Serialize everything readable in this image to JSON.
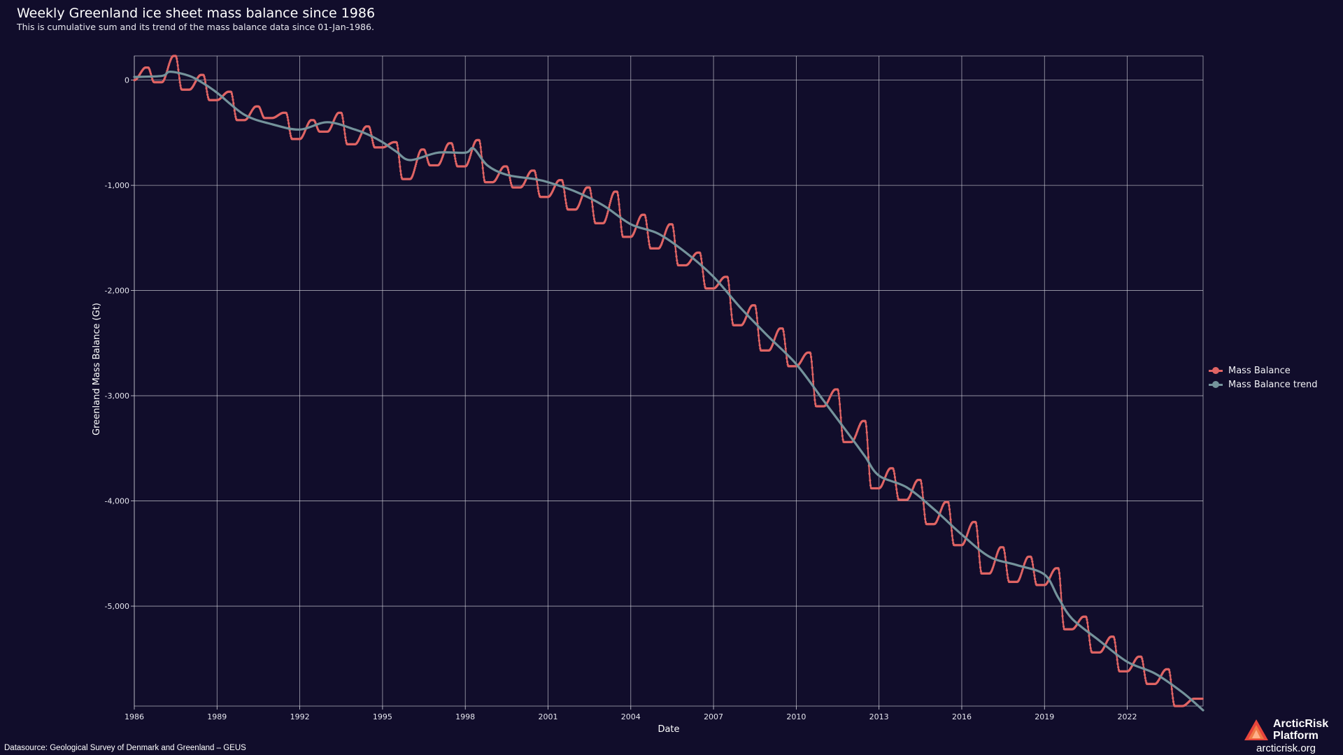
{
  "header": {
    "title": "Weekly Greenland ice sheet mass balance since 1986",
    "subtitle": "This is cumulative sum and its trend of the mass balance data since 01-Jan-1986."
  },
  "footer": {
    "source": "Datasource: Geological Survey of Denmark and Greenland – GEUS",
    "brand_line1": "ArcticRisk",
    "brand_line2": "Platform",
    "brand_url": "arcticrisk.org"
  },
  "colors": {
    "background": "#110d2b",
    "grid": "#d8d8e0",
    "mass_balance": "#e06464",
    "trend": "#74939b",
    "text": "#ffffff"
  },
  "chart_data": {
    "type": "line",
    "xlabel": "Date",
    "ylabel": "Greenland Mass Balance (Gt)",
    "xlim": [
      1986.0,
      2024.75
    ],
    "ylim": [
      -5950,
      230
    ],
    "x_ticks": [
      1986,
      1989,
      1992,
      1995,
      1998,
      2001,
      2004,
      2007,
      2010,
      2013,
      2016,
      2019,
      2022
    ],
    "y_ticks": [
      0,
      -1000,
      -2000,
      -3000,
      -4000,
      -5000
    ],
    "y_tick_labels": [
      "0",
      "-1,000",
      "-2,000",
      "-3,000",
      "-4,000",
      "-5,000"
    ],
    "grid": true,
    "legend_position": "right",
    "series": [
      {
        "name": "Mass Balance",
        "style": "line-with-markers",
        "color": "#e06464",
        "annual_points": [
          {
            "year": 1986,
            "start": 0,
            "peak": 120,
            "low": -20
          },
          {
            "year": 1987,
            "start": -20,
            "peak": 230,
            "low": -90
          },
          {
            "year": 1988,
            "start": -90,
            "peak": 50,
            "low": -190
          },
          {
            "year": 1989,
            "start": -190,
            "peak": -110,
            "low": -380
          },
          {
            "year": 1990,
            "start": -380,
            "peak": -250,
            "low": -360
          },
          {
            "year": 1991,
            "start": -360,
            "peak": -310,
            "low": -560
          },
          {
            "year": 1992,
            "start": -560,
            "peak": -380,
            "low": -490
          },
          {
            "year": 1993,
            "start": -490,
            "peak": -310,
            "low": -610
          },
          {
            "year": 1994,
            "start": -610,
            "peak": -440,
            "low": -640
          },
          {
            "year": 1995,
            "start": -640,
            "peak": -590,
            "low": -940
          },
          {
            "year": 1996,
            "start": -940,
            "peak": -660,
            "low": -810
          },
          {
            "year": 1997,
            "start": -810,
            "peak": -600,
            "low": -820
          },
          {
            "year": 1998,
            "start": -820,
            "peak": -570,
            "low": -970
          },
          {
            "year": 1999,
            "start": -970,
            "peak": -820,
            "low": -1020
          },
          {
            "year": 2000,
            "start": -1020,
            "peak": -860,
            "low": -1110
          },
          {
            "year": 2001,
            "start": -1110,
            "peak": -950,
            "low": -1230
          },
          {
            "year": 2002,
            "start": -1230,
            "peak": -1020,
            "low": -1360
          },
          {
            "year": 2003,
            "start": -1360,
            "peak": -1060,
            "low": -1490
          },
          {
            "year": 2004,
            "start": -1490,
            "peak": -1280,
            "low": -1600
          },
          {
            "year": 2005,
            "start": -1600,
            "peak": -1370,
            "low": -1760
          },
          {
            "year": 2006,
            "start": -1760,
            "peak": -1640,
            "low": -1980
          },
          {
            "year": 2007,
            "start": -1980,
            "peak": -1870,
            "low": -2330
          },
          {
            "year": 2008,
            "start": -2330,
            "peak": -2140,
            "low": -2570
          },
          {
            "year": 2009,
            "start": -2570,
            "peak": -2360,
            "low": -2720
          },
          {
            "year": 2010,
            "start": -2720,
            "peak": -2590,
            "low": -3100
          },
          {
            "year": 2011,
            "start": -3100,
            "peak": -2940,
            "low": -3440
          },
          {
            "year": 2012,
            "start": -3440,
            "peak": -3240,
            "low": -3880
          },
          {
            "year": 2013,
            "start": -3880,
            "peak": -3690,
            "low": -3990
          },
          {
            "year": 2014,
            "start": -3990,
            "peak": -3800,
            "low": -4220
          },
          {
            "year": 2015,
            "start": -4220,
            "peak": -4010,
            "low": -4420
          },
          {
            "year": 2016,
            "start": -4420,
            "peak": -4200,
            "low": -4690
          },
          {
            "year": 2017,
            "start": -4690,
            "peak": -4440,
            "low": -4770
          },
          {
            "year": 2018,
            "start": -4770,
            "peak": -4530,
            "low": -4800
          },
          {
            "year": 2019,
            "start": -4800,
            "peak": -4640,
            "low": -5220
          },
          {
            "year": 2020,
            "start": -5220,
            "peak": -5100,
            "low": -5440
          },
          {
            "year": 2021,
            "start": -5440,
            "peak": -5290,
            "low": -5620
          },
          {
            "year": 2022,
            "start": -5620,
            "peak": -5480,
            "low": -5740
          },
          {
            "year": 2023,
            "start": -5740,
            "peak": -5600,
            "low": -5950
          },
          {
            "year": 2024,
            "start": -5950,
            "peak": -5880,
            "low": -5880
          }
        ]
      },
      {
        "name": "Mass Balance trend",
        "style": "line-with-markers",
        "color": "#74939b",
        "x": [
          1986.0,
          1987.0,
          1987.3,
          1988.0,
          1988.5,
          1989.0,
          1990.0,
          1991.0,
          1992.0,
          1993.0,
          1994.0,
          1994.5,
          1995.0,
          1995.5,
          1996.0,
          1997.0,
          1998.0,
          1998.3,
          1998.8,
          1999.5,
          2000.5,
          2001.0,
          2002.0,
          2003.0,
          2004.0,
          2005.0,
          2006.0,
          2007.0,
          2008.0,
          2009.0,
          2010.0,
          2011.0,
          2012.0,
          2012.5,
          2013.0,
          2014.0,
          2015.0,
          2016.0,
          2017.0,
          2018.0,
          2019.0,
          2019.5,
          2020.0,
          2021.0,
          2022.0,
          2023.0,
          2024.0,
          2024.75
        ],
        "y": [
          30,
          40,
          80,
          40,
          -30,
          -120,
          -330,
          -420,
          -470,
          -400,
          -470,
          -520,
          -590,
          -680,
          -760,
          -690,
          -690,
          -650,
          -810,
          -900,
          -940,
          -970,
          -1060,
          -1190,
          -1370,
          -1460,
          -1640,
          -1870,
          -2170,
          -2440,
          -2700,
          -3050,
          -3400,
          -3580,
          -3760,
          -3870,
          -4080,
          -4320,
          -4530,
          -4610,
          -4700,
          -4920,
          -5120,
          -5330,
          -5530,
          -5640,
          -5820,
          -5990
        ]
      }
    ]
  }
}
